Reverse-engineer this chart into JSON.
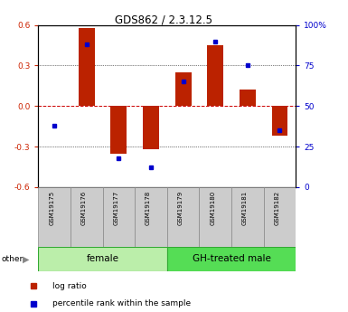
{
  "title": "GDS862 / 2.3.12.5",
  "samples": [
    "GSM19175",
    "GSM19176",
    "GSM19177",
    "GSM19178",
    "GSM19179",
    "GSM19180",
    "GSM19181",
    "GSM19182"
  ],
  "log_ratio": [
    0.0,
    0.58,
    -0.35,
    -0.32,
    0.25,
    0.45,
    0.12,
    -0.22
  ],
  "percentile_rank": [
    38,
    88,
    18,
    12,
    65,
    90,
    75,
    35
  ],
  "groups": [
    {
      "label": "female",
      "start": 0,
      "end": 3,
      "color": "#bbeeaa"
    },
    {
      "label": "GH-treated male",
      "start": 4,
      "end": 7,
      "color": "#55dd55"
    }
  ],
  "ylim_left": [
    -0.6,
    0.6
  ],
  "ylim_right": [
    0,
    100
  ],
  "yticks_left": [
    -0.6,
    -0.3,
    0.0,
    0.3,
    0.6
  ],
  "yticks_right": [
    0,
    25,
    50,
    75,
    100
  ],
  "ytick_labels_right": [
    "0",
    "25",
    "50",
    "75",
    "100%"
  ],
  "bar_color": "#bb2200",
  "dot_color": "#0000cc",
  "grid_color": "#000000",
  "zero_line_color": "#cc0000",
  "bg_color": "#ffffff",
  "legend_items": [
    "log ratio",
    "percentile rank within the sample"
  ],
  "other_label": "other"
}
